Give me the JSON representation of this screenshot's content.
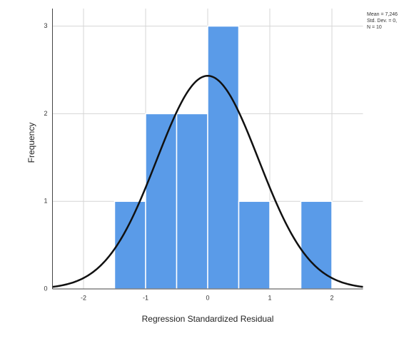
{
  "chart_data": {
    "type": "histogram",
    "bins": [
      -1.5,
      -1.0,
      -0.5,
      0.0,
      0.5,
      1.0,
      1.5,
      2.0
    ],
    "values": [
      1,
      2,
      2,
      3,
      1,
      0,
      1
    ],
    "color": "#5a9be8",
    "xlabel": "Regression Standardized Residual",
    "ylabel": "Frequency",
    "xlim": [
      -2.5,
      2.5
    ],
    "xticks": [
      -2,
      -1,
      0,
      1,
      2
    ],
    "ylim": [
      0,
      3.2
    ],
    "yticks": [
      0,
      1,
      2,
      3
    ],
    "grid": true,
    "curve": {
      "mean": 0,
      "sd": 0.82,
      "color": "#111111"
    },
    "stats": [
      "Mean = 7,246",
      "Std. Dev. = 0,",
      "N = 10"
    ]
  }
}
